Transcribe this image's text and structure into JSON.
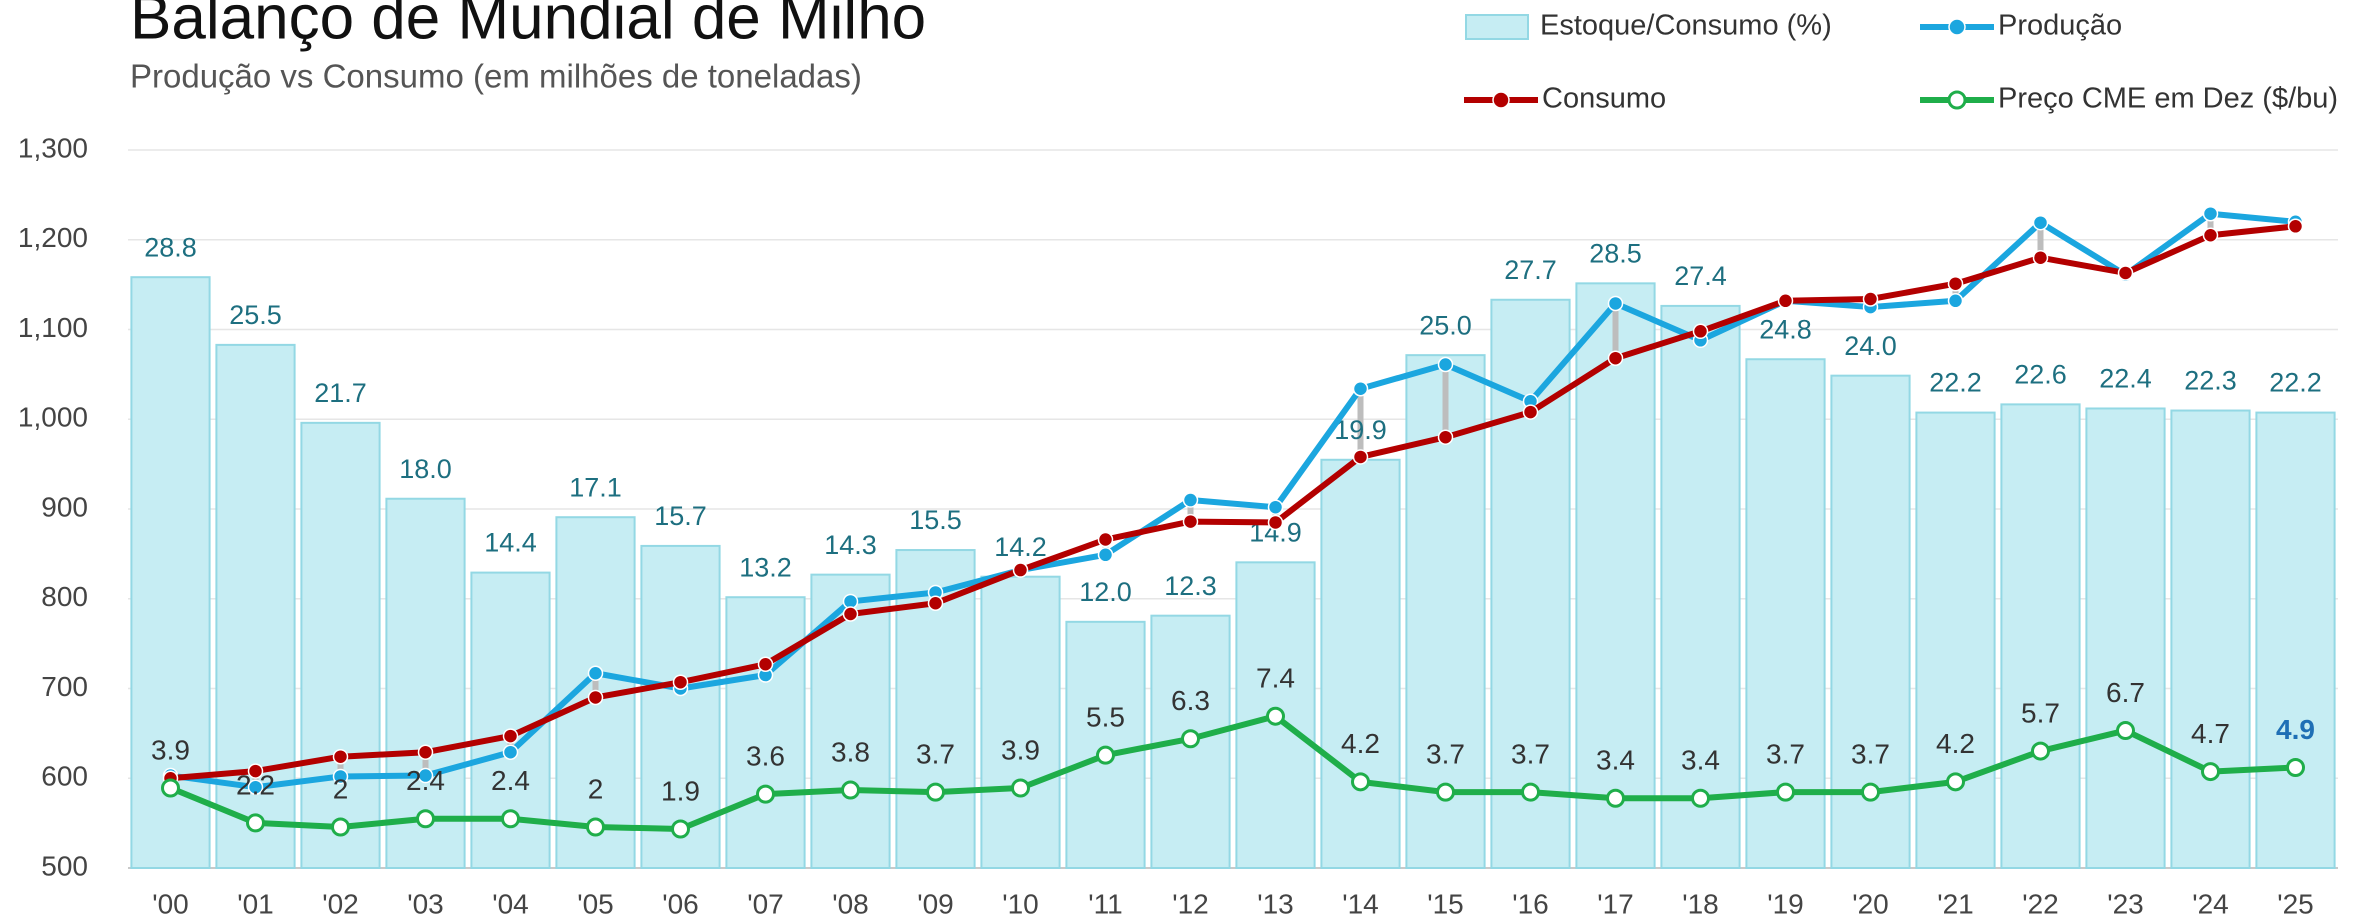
{
  "chart_data": {
    "type": "combo",
    "title": "Balanço de Mundial de Milho",
    "subtitle": "Produção vs Consumo (em milhões de toneladas)",
    "categories": [
      "'00",
      "'01",
      "'02",
      "'03",
      "'04",
      "'05",
      "'06",
      "'07",
      "'08",
      "'09",
      "'10",
      "'11",
      "'12",
      "'13",
      "'14",
      "'15",
      "'16",
      "'17",
      "'18",
      "'19",
      "'20",
      "'21",
      "'22",
      "'23",
      "'24",
      "'25"
    ],
    "ylim": [
      500,
      1300
    ],
    "yticks": [
      500,
      600,
      700,
      800,
      900,
      {
        "value": 1000,
        "label": "1,000"
      },
      {
        "value": 1100,
        "label": "1,100"
      },
      {
        "value": 1200,
        "label": "1,200"
      },
      {
        "value": 1300,
        "label": "1,300"
      }
    ],
    "y2lim": [
      0,
      35
    ],
    "grid": true,
    "series": [
      {
        "name": "Estoque/Consumo (%)",
        "type": "bar",
        "axis": "y2",
        "color": "#c6edf3",
        "values": [
          28.8,
          25.5,
          21.7,
          18.0,
          14.4,
          17.1,
          15.7,
          13.2,
          14.3,
          15.5,
          14.2,
          12.0,
          12.3,
          14.9,
          19.9,
          25.0,
          27.7,
          28.5,
          27.4,
          24.8,
          24.0,
          22.2,
          22.6,
          22.4,
          22.3,
          22.2
        ],
        "value_labels": [
          "28.8",
          "25.5",
          "21.7",
          "18.0",
          "14.4",
          "17.1",
          "15.7",
          "13.2",
          "14.3",
          "15.5",
          "14.2",
          "12.0",
          "12.3",
          "14.9",
          "19.9",
          "25.0",
          "27.7",
          "28.5",
          "27.4",
          "24.8",
          "24.0",
          "22.2",
          "22.6",
          "22.4",
          "22.3",
          "22.2"
        ]
      },
      {
        "name": "Produção",
        "type": "line",
        "color": "#1ba6df",
        "values": [
          603,
          590,
          602,
          603,
          629,
          717,
          700,
          715,
          797,
          807,
          832,
          849,
          910,
          902,
          1034,
          1061,
          1020,
          1129,
          1088,
          1132,
          1125,
          1132,
          1219,
          1161,
          1229,
          1220
        ]
      },
      {
        "name": "Consumo",
        "type": "line",
        "color": "#b30000",
        "values": [
          600,
          608,
          624,
          629,
          647,
          690,
          707,
          727,
          783,
          795,
          832,
          866,
          886,
          885,
          958,
          980,
          1008,
          1068,
          1098,
          1132,
          1134,
          1151,
          1180,
          1163,
          1205,
          1215
        ]
      },
      {
        "name": "Preço CME em Dez ($/bu)",
        "type": "line",
        "axis": "y2",
        "color": "#1fae4a",
        "open_markers": true,
        "values": [
          3.9,
          2.2,
          2.0,
          2.4,
          2.4,
          2.0,
          1.9,
          3.6,
          3.8,
          3.7,
          3.9,
          5.5,
          6.3,
          7.4,
          4.2,
          3.7,
          3.7,
          3.4,
          3.4,
          3.7,
          3.7,
          4.2,
          5.7,
          6.7,
          4.7,
          4.9
        ],
        "last_label_color": "#1f6fb5"
      }
    ]
  }
}
